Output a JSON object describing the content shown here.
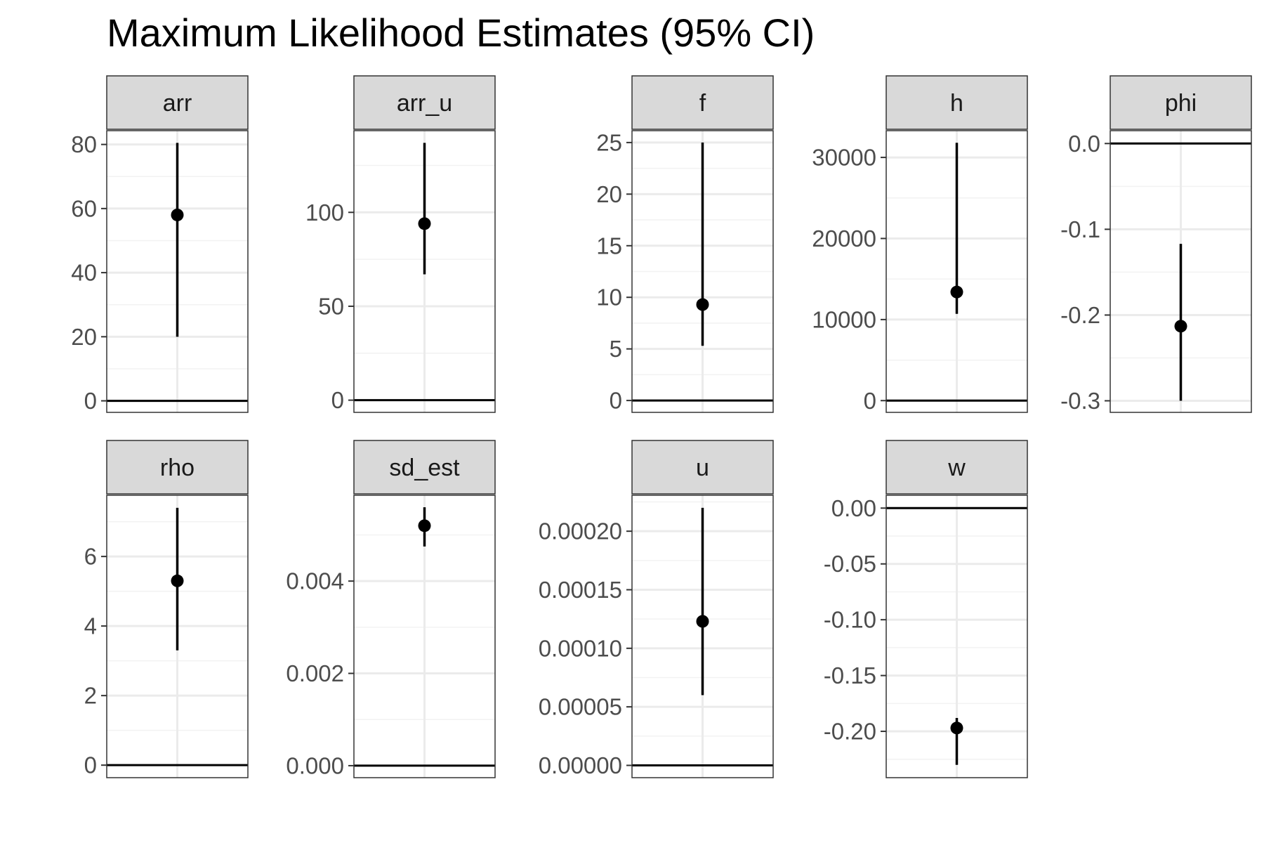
{
  "title": "Maximum Likelihood Estimates (95% CI)",
  "chart_data": {
    "type": "pointrange",
    "title": "Maximum Likelihood Estimates (95% CI)",
    "grid": true,
    "reference_line": 0,
    "panels": [
      {
        "name": "arr",
        "estimate": 58,
        "lower": 20,
        "upper": 80.5,
        "ylim": [
          -3.6,
          84.3
        ],
        "ticks": [
          0,
          20,
          40,
          60,
          80
        ],
        "tick_labels": [
          "0",
          "20",
          "40",
          "60",
          "80"
        ]
      },
      {
        "name": "arr_u",
        "estimate": 94,
        "lower": 67,
        "upper": 137,
        "ylim": [
          -6.5,
          143.5
        ],
        "ticks": [
          0,
          50,
          100
        ],
        "tick_labels": [
          "0",
          "50",
          "100"
        ]
      },
      {
        "name": "f",
        "estimate": 9.3,
        "lower": 5.3,
        "upper": 25,
        "ylim": [
          -1.15,
          26.15
        ],
        "ticks": [
          0,
          5,
          10,
          15,
          20,
          25
        ],
        "tick_labels": [
          "0",
          "5",
          "10",
          "15",
          "20",
          "25"
        ]
      },
      {
        "name": "h",
        "estimate": 13400,
        "lower": 10700,
        "upper": 31800,
        "ylim": [
          -1450,
          33300
        ],
        "ticks": [
          0,
          10000,
          20000,
          30000
        ],
        "tick_labels": [
          "0",
          "10000",
          "20000",
          "30000"
        ]
      },
      {
        "name": "phi",
        "estimate": -0.213,
        "lower": -0.3,
        "upper": -0.117,
        "ylim": [
          -0.3135,
          0.015
        ],
        "ticks": [
          -0.3,
          -0.2,
          -0.1,
          0.0
        ],
        "tick_labels": [
          "-0.3",
          "-0.2",
          "-0.1",
          "0.0"
        ]
      },
      {
        "name": "rho",
        "estimate": 5.3,
        "lower": 3.3,
        "upper": 7.4,
        "ylim": [
          -0.36,
          7.76
        ],
        "ticks": [
          0,
          2,
          4,
          6
        ],
        "tick_labels": [
          "0",
          "2",
          "4",
          "6"
        ]
      },
      {
        "name": "sd_est",
        "estimate": 0.0052,
        "lower": 0.00475,
        "upper": 0.0056,
        "ylim": [
          -0.00026,
          0.00586
        ],
        "ticks": [
          0,
          0.002,
          0.004
        ],
        "tick_labels": [
          "0.000",
          "0.002",
          "0.004"
        ]
      },
      {
        "name": "u",
        "estimate": 0.000123,
        "lower": 6e-05,
        "upper": 0.00022,
        "ylim": [
          -1.05e-05,
          0.0002307
        ],
        "ticks": [
          0,
          5e-05,
          0.0001,
          0.00015,
          0.0002
        ],
        "tick_labels": [
          "0.00000",
          "0.00005",
          "0.00010",
          "0.00015",
          "0.00020"
        ]
      },
      {
        "name": "w",
        "estimate": -0.197,
        "lower": -0.23,
        "upper": -0.188,
        "ylim": [
          -0.2415,
          0.0115
        ],
        "ticks": [
          -0.2,
          -0.15,
          -0.1,
          -0.05,
          0.0
        ],
        "tick_labels": [
          "-0.20",
          "-0.15",
          "-0.10",
          "-0.05",
          "0.00"
        ]
      }
    ]
  }
}
